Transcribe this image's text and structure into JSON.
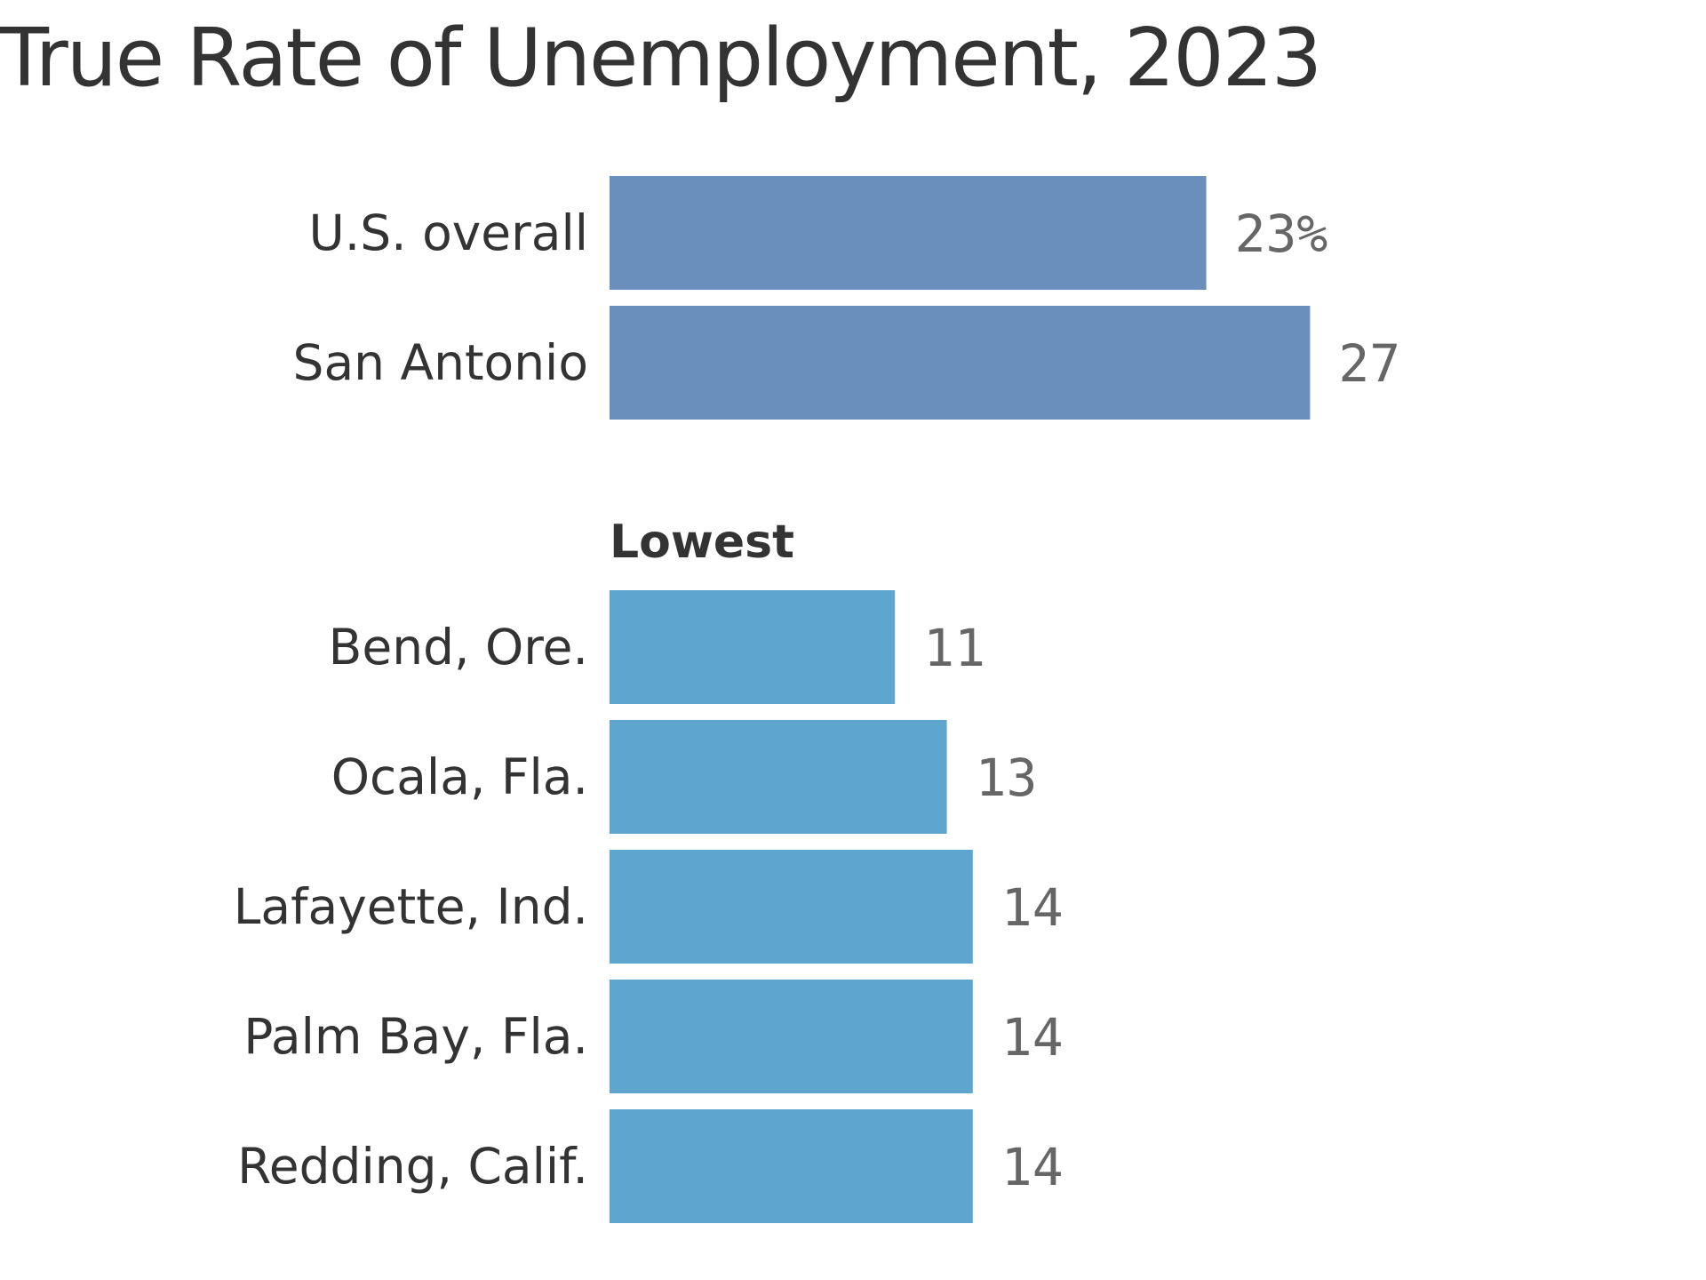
{
  "chart_data": {
    "type": "bar",
    "orientation": "horizontal",
    "title": "True Rate of Unemployment, 2023",
    "unit_suffix_first": "%",
    "groups": [
      {
        "label": "",
        "color": "#6a8fbc",
        "categories": [
          "U.S. overall",
          "San Antonio"
        ],
        "values": [
          23,
          27
        ]
      },
      {
        "label": "Lowest",
        "color": "#5fa6cf",
        "categories": [
          "Bend, Ore.",
          "Ocala, Fla.",
          "Lafayette, Ind.",
          "Palm Bay, Fla.",
          "Redding, Calif."
        ],
        "values": [
          11,
          13,
          14,
          14,
          14
        ]
      }
    ],
    "xlim": [
      0,
      30
    ],
    "grid": false,
    "legend": "none"
  }
}
